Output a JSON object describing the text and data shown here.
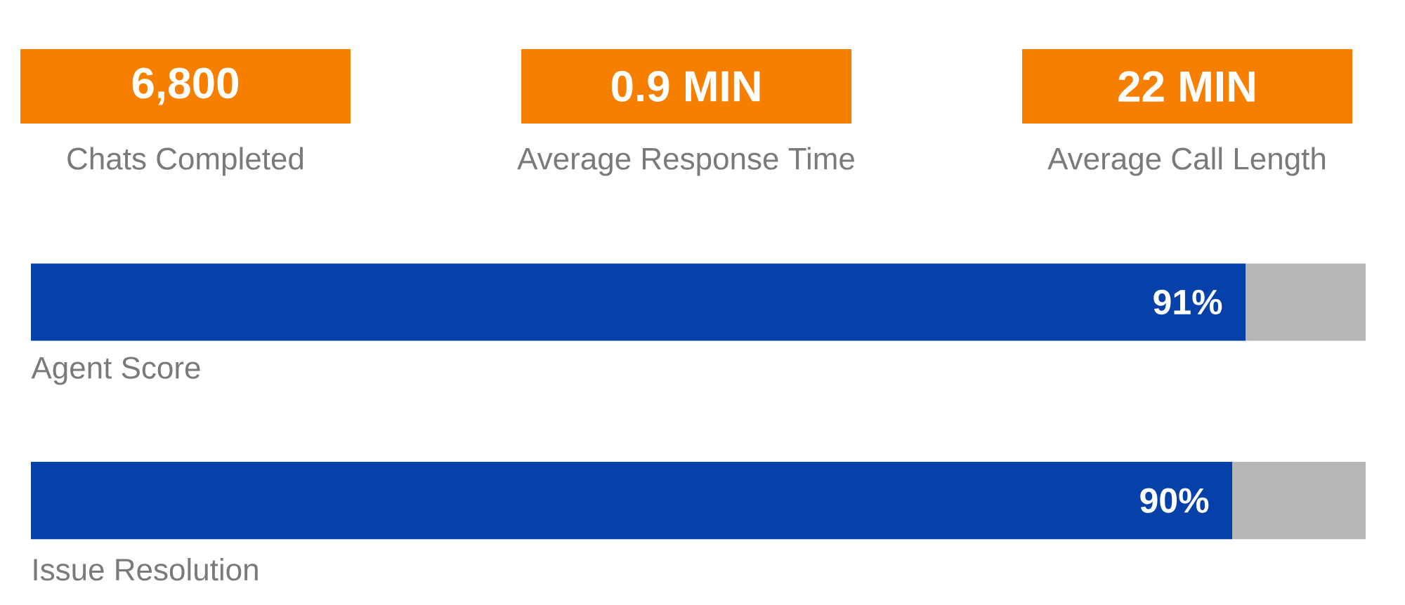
{
  "chart_data": [
    {
      "type": "other",
      "categories": [
        "Chats Completed",
        "Average Response Time",
        "Average Call Length"
      ],
      "value_labels": [
        "6,800",
        "0.9 MIN",
        "22 MIN"
      ],
      "color": "#f77f00"
    },
    {
      "type": "bar",
      "orientation": "horizontal",
      "stacked": true,
      "categories": [
        "Agent Score",
        "Issue Resolution"
      ],
      "xlim": [
        0,
        100
      ],
      "series": [
        {
          "color": "#0541a8",
          "values": [
            91,
            90
          ],
          "value_labels": [
            "91%",
            "90%"
          ]
        },
        {
          "color": "#b7b7b7",
          "values": [
            9,
            10
          ]
        }
      ]
    }
  ]
}
